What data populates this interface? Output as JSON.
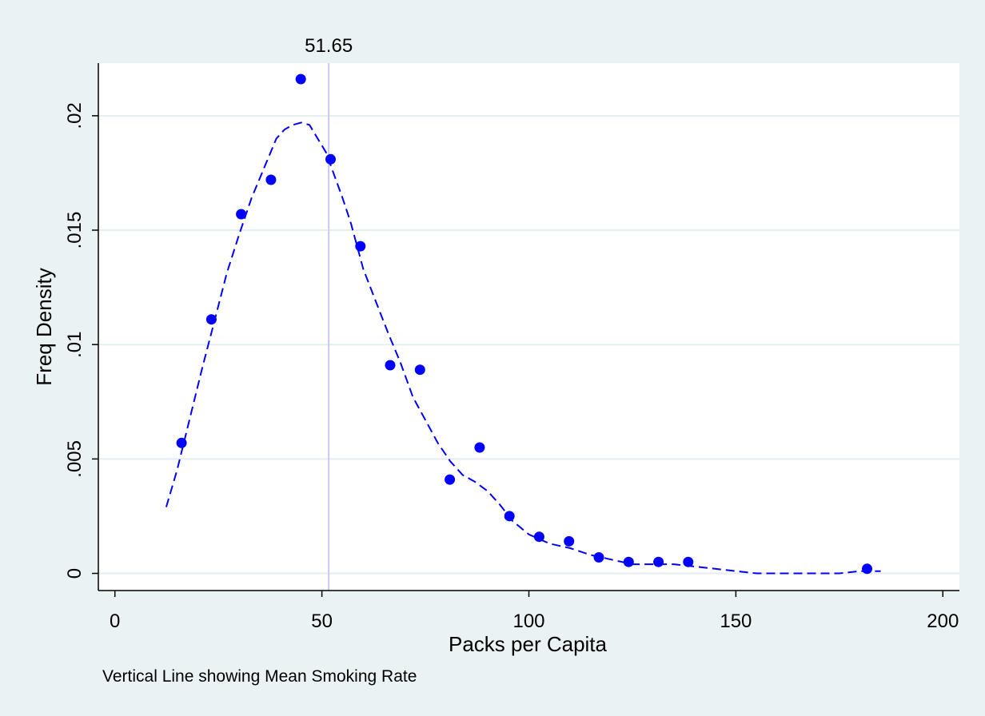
{
  "chart_data": {
    "type": "scatter",
    "title": "",
    "xlabel": "Packs per Capita",
    "ylabel": "Freq Density",
    "note": "Vertical Line showing Mean Smoking Rate",
    "xlim": [
      -4,
      204
    ],
    "ylim": [
      -0.00075,
      0.0223
    ],
    "x_ticks": [
      {
        "value": 0,
        "label": "0"
      },
      {
        "value": 50,
        "label": "50"
      },
      {
        "value": 100,
        "label": "100"
      },
      {
        "value": 150,
        "label": "150"
      },
      {
        "value": 200,
        "label": "200"
      }
    ],
    "y_ticks": [
      {
        "value": 0,
        "label": "0"
      },
      {
        "value": 0.005,
        "label": ".005"
      },
      {
        "value": 0.01,
        "label": ".01"
      },
      {
        "value": 0.015,
        "label": ".015"
      },
      {
        "value": 0.02,
        "label": ".02"
      }
    ],
    "grid": true,
    "mean_line": {
      "x": 51.65,
      "label": "51.65"
    },
    "series": [
      {
        "type": "scatter",
        "color": "#0000ff",
        "x": [
          16.1,
          23.3,
          30.5,
          37.7,
          44.9,
          52.1,
          59.3,
          66.5,
          73.7,
          80.9,
          88.1,
          95.3,
          102.5,
          109.7,
          116.9,
          124.1,
          131.3,
          138.5,
          181.7
        ],
        "y": [
          0.0057,
          0.0111,
          0.0157,
          0.0172,
          0.0216,
          0.0181,
          0.0143,
          0.0091,
          0.0089,
          0.0041,
          0.0055,
          0.0025,
          0.0016,
          0.0014,
          0.0007,
          0.0005,
          0.0005,
          0.0005,
          0.0002
        ]
      },
      {
        "type": "line",
        "style": "dashed",
        "color": "#0000ff",
        "x": [
          12.4,
          15,
          18,
          21,
          24,
          27,
          30,
          33,
          36,
          39,
          41,
          43,
          45,
          47,
          49,
          51,
          53,
          55,
          57,
          60,
          63,
          66,
          69,
          72,
          75,
          78,
          81,
          84,
          87,
          90,
          93,
          96,
          100,
          105,
          110,
          115,
          120,
          125,
          130,
          135,
          140,
          145,
          150,
          155,
          160,
          165,
          170,
          175,
          180,
          185
        ],
        "y": [
          0.0029,
          0.0045,
          0.0067,
          0.0089,
          0.011,
          0.0131,
          0.0148,
          0.0164,
          0.0177,
          0.019,
          0.0194,
          0.0196,
          0.0197,
          0.0196,
          0.019,
          0.0184,
          0.0174,
          0.0164,
          0.0153,
          0.0133,
          0.0119,
          0.0105,
          0.0092,
          0.0077,
          0.0067,
          0.0057,
          0.0049,
          0.0043,
          0.004,
          0.0036,
          0.003,
          0.0023,
          0.0017,
          0.0013,
          0.0011,
          0.0008,
          0.0006,
          0.0004,
          0.0004,
          0.0004,
          0.0003,
          0.0002,
          0.0001,
          0.0,
          0.0,
          0.0,
          0.0,
          0.0,
          0.0001,
          0.0001
        ]
      }
    ]
  }
}
